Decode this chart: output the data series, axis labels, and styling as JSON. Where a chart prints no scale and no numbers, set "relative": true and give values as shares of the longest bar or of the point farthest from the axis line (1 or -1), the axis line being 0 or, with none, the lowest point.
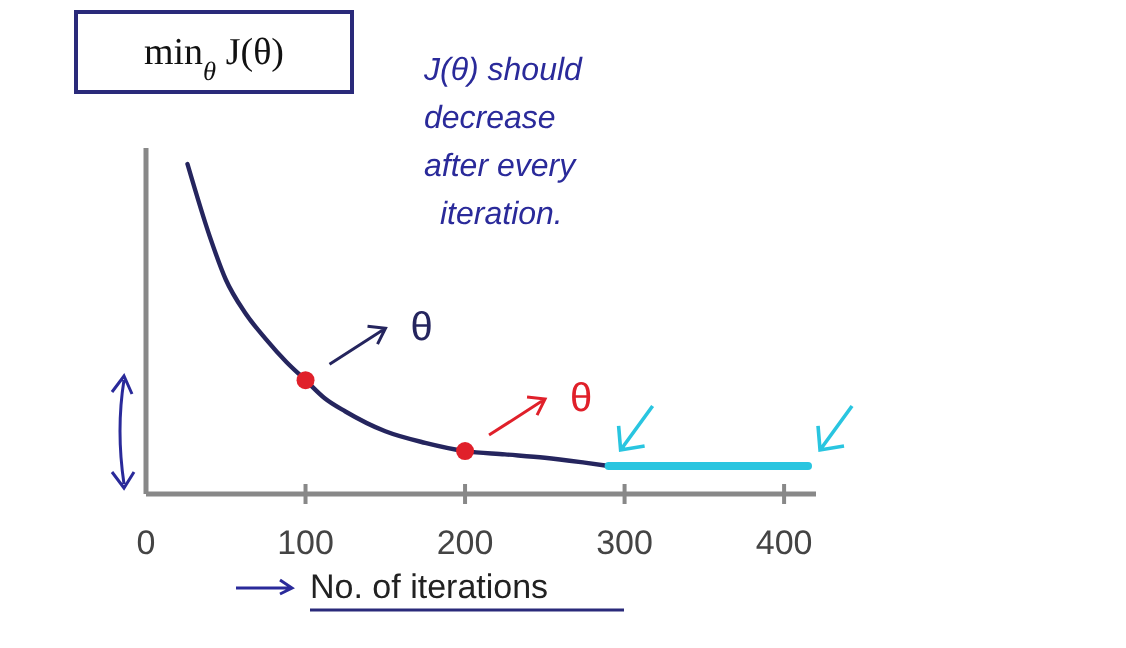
{
  "chart_data": {
    "type": "line",
    "title": "min$_{θ}$ J(θ)",
    "xlabel": "No. of iterations",
    "relative": true,
    "xlim": [
      0,
      420
    ],
    "xticks": [
      0,
      100,
      200,
      300,
      400
    ],
    "series": [
      {
        "color": "#25255e",
        "x": [
          26,
          40,
          50,
          62,
          75,
          88,
          100,
          112,
          125,
          150,
          175,
          200,
          225,
          250,
          275,
          290
        ],
        "values": [
          1,
          0.78,
          0.65,
          0.55,
          0.47,
          0.4,
          0.345,
          0.29,
          0.25,
          0.19,
          0.155,
          0.13,
          0.12,
          0.11,
          0.095,
          0.085
        ]
      },
      {
        "type": "scatter",
        "color": "#e0202a",
        "marker": "circle",
        "x": [
          100,
          200
        ],
        "values": [
          0.345,
          0.13
        ]
      },
      {
        "color": "#29c5e0",
        "x": [
          290,
          415
        ],
        "values": [
          0.085,
          0.085
        ]
      }
    ],
    "annotations": [
      "J(θ) should decrease after every iteration.",
      {
        "text": "θ",
        "x": 100,
        "y": 0.345
      },
      {
        "text": "θ",
        "x": 200,
        "y": 0.13
      }
    ]
  }
}
